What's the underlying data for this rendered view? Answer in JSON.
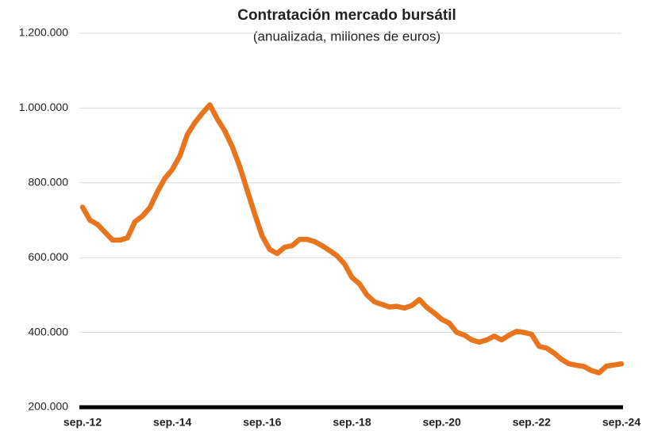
{
  "chart_data": {
    "type": "line",
    "title": "Contratación mercado bursátil",
    "subtitle": "(anualizada, millones de euros)",
    "categories": [
      "sep.-12",
      null,
      null,
      null,
      null,
      null,
      null,
      null,
      null,
      null,
      null,
      null,
      "sep.-14",
      null,
      null,
      null,
      null,
      null,
      null,
      null,
      null,
      null,
      null,
      null,
      "sep.-16",
      null,
      null,
      null,
      null,
      null,
      null,
      null,
      null,
      null,
      null,
      null,
      "sep.-18",
      null,
      null,
      null,
      null,
      null,
      null,
      null,
      null,
      null,
      null,
      null,
      "sep.-20",
      null,
      null,
      null,
      null,
      null,
      null,
      null,
      null,
      null,
      null,
      null,
      "sep.-22",
      null,
      null,
      null,
      null,
      null,
      null,
      null,
      null,
      null,
      null,
      null,
      "sep.-24"
    ],
    "series": [
      {
        "color": "#e8741e",
        "values": [
          735000,
          700000,
          689000,
          668000,
          647000,
          647000,
          653000,
          696000,
          711000,
          734000,
          776000,
          812000,
          836000,
          872000,
          929000,
          961000,
          986000,
          1009000,
          971000,
          939000,
          897000,
          844000,
          780000,
          717000,
          658000,
          622000,
          611000,
          628000,
          632000,
          649000,
          649000,
          643000,
          632000,
          619000,
          605000,
          583000,
          547000,
          530000,
          500000,
          482000,
          475000,
          468000,
          470000,
          465000,
          472000,
          488000,
          467000,
          452000,
          435000,
          425000,
          400000,
          393000,
          380000,
          374000,
          380000,
          390000,
          380000,
          393000,
          403000,
          400000,
          395000,
          363000,
          358000,
          345000,
          328000,
          316000,
          312000,
          309000,
          298000,
          292000,
          310000,
          313000,
          316000
        ]
      }
    ],
    "ylim": [
      200000,
      1200000
    ],
    "yticks": [
      {
        "value": 200000,
        "label": "200.000"
      },
      {
        "value": 400000,
        "label": "400.000"
      },
      {
        "value": 600000,
        "label": "600.000"
      },
      {
        "value": 800000,
        "label": "800.000"
      },
      {
        "value": 1000000,
        "label": "1.000.000"
      },
      {
        "value": 1200000,
        "label": "1.200.000"
      }
    ],
    "grid": true
  }
}
